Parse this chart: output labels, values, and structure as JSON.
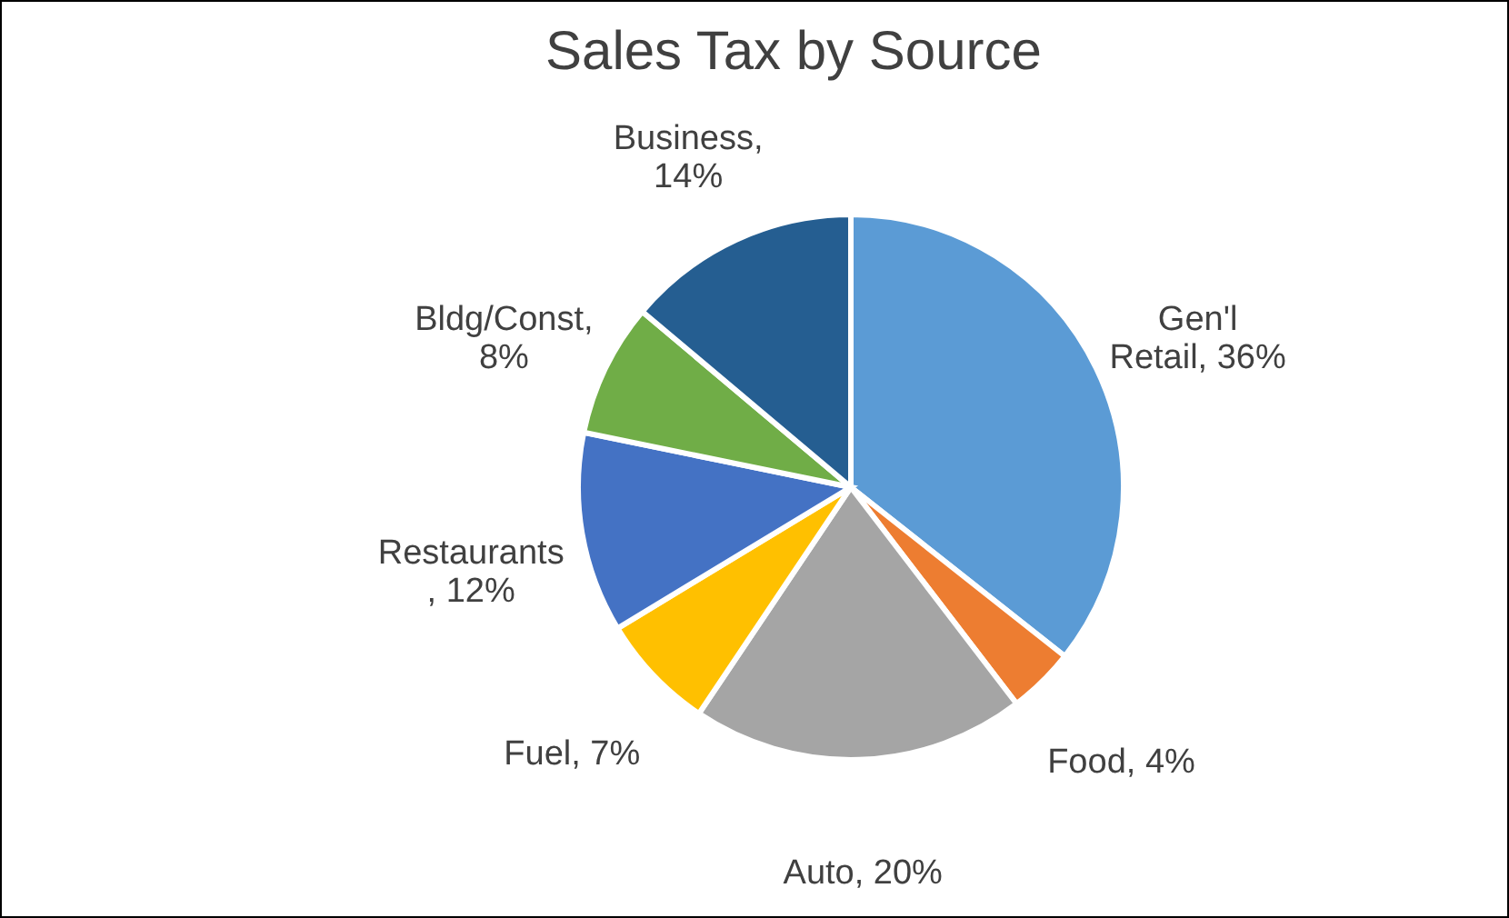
{
  "chart_data": {
    "type": "pie",
    "title": "Sales Tax by Source",
    "categories": [
      "Gen'l Retail",
      "Food",
      "Auto",
      "Fuel",
      "Restaurants",
      "Bldg/Const",
      "Business"
    ],
    "values": [
      36,
      4,
      20,
      7,
      12,
      8,
      14
    ],
    "colors": [
      "#5b9bd5",
      "#ed7d31",
      "#a5a5a5",
      "#ffc000",
      "#4472c4",
      "#70ad47",
      "#255e91"
    ],
    "value_labels": [
      ", 36%",
      ", 4%",
      ", 20%",
      ", 7%",
      ", 12%",
      ", 8%",
      ", 14%"
    ],
    "legend": false
  }
}
